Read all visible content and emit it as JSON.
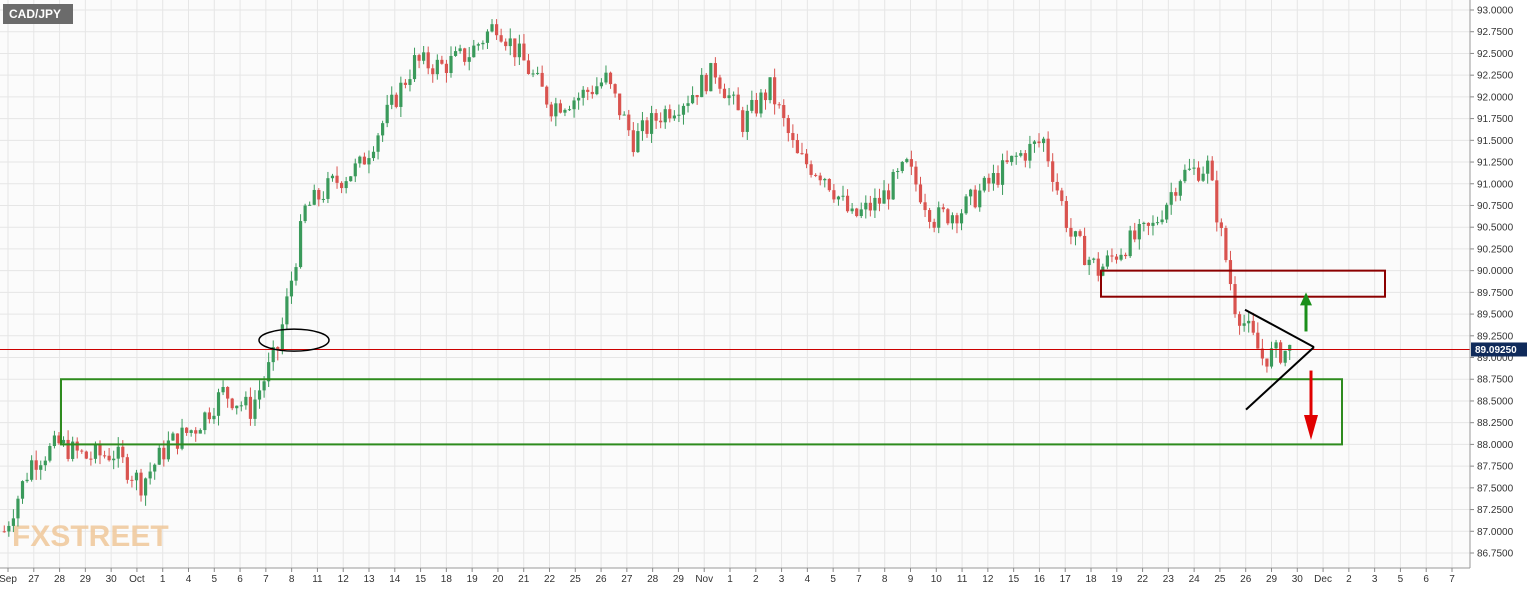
{
  "symbol": "CAD/JPY",
  "watermark": "FXSTREET",
  "colors": {
    "up": "#3a9a5b",
    "down": "#d9534f",
    "grid": "#e6e6e6",
    "price_line": "#cc0000",
    "support_box": "#2e8b1e",
    "resistance_box": "#8b0000",
    "up_arrow": "#1a8f1a",
    "down_arrow": "#e00000",
    "triangle": "#000000",
    "price_tag_bg": "#0f2a5a"
  },
  "chart_data": {
    "type": "candlestick",
    "title": "",
    "xlabel": "",
    "ylabel": "",
    "ylim": [
      86.6,
      93.05
    ],
    "yticks": [
      "93.0000",
      "92.7500",
      "92.5000",
      "92.2500",
      "92.0000",
      "91.7500",
      "91.5000",
      "91.2500",
      "91.0000",
      "90.7500",
      "90.5000",
      "90.2500",
      "90.0000",
      "89.7500",
      "89.5000",
      "89.2500",
      "89.0000",
      "88.7500",
      "88.5000",
      "88.2500",
      "88.0000",
      "87.7500",
      "87.5000",
      "87.2500",
      "87.0000",
      "86.7500"
    ],
    "x_ticks": [
      "Sep",
      "27",
      "28",
      "29",
      "30",
      "Oct",
      "1",
      "4",
      "5",
      "6",
      "7",
      "8",
      "11",
      "12",
      "13",
      "14",
      "15",
      "18",
      "19",
      "20",
      "21",
      "22",
      "25",
      "26",
      "27",
      "28",
      "29",
      "Nov",
      "1",
      "2",
      "3",
      "4",
      "5",
      "7",
      "8",
      "9",
      "10",
      "11",
      "12",
      "15",
      "16",
      "17",
      "18",
      "19",
      "22",
      "23",
      "24",
      "25",
      "26",
      "29",
      "30",
      "Dec",
      "2",
      "3",
      "5",
      "6",
      "7"
    ],
    "current_price": 89.0925,
    "current_price_label": "89.09250",
    "daily_closes": [
      {
        "date": "Sep 24",
        "close": 87.0
      },
      {
        "date": "Sep 27",
        "close": 87.8
      },
      {
        "date": "Sep 28",
        "close": 88.0
      },
      {
        "date": "Sep 29",
        "close": 87.85
      },
      {
        "date": "Sep 30",
        "close": 87.9
      },
      {
        "date": "Oct 1",
        "close": 87.55
      },
      {
        "date": "Oct 4",
        "close": 88.0
      },
      {
        "date": "Oct 5",
        "close": 88.2
      },
      {
        "date": "Oct 6",
        "close": 88.6
      },
      {
        "date": "Oct 7",
        "close": 88.4
      },
      {
        "date": "Oct 8",
        "close": 89.1
      },
      {
        "date": "Oct 11",
        "close": 90.7
      },
      {
        "date": "Oct 12",
        "close": 91.0
      },
      {
        "date": "Oct 13",
        "close": 91.2
      },
      {
        "date": "Oct 14",
        "close": 91.8
      },
      {
        "date": "Oct 15",
        "close": 92.4
      },
      {
        "date": "Oct 18",
        "close": 92.35
      },
      {
        "date": "Oct 19",
        "close": 92.5
      },
      {
        "date": "Oct 20",
        "close": 92.85
      },
      {
        "date": "Oct 21",
        "close": 92.4
      },
      {
        "date": "Oct 22",
        "close": 91.9
      },
      {
        "date": "Oct 25",
        "close": 92.0
      },
      {
        "date": "Oct 26",
        "close": 92.2
      },
      {
        "date": "Oct 27",
        "close": 91.5
      },
      {
        "date": "Oct 28",
        "close": 91.8
      },
      {
        "date": "Oct 29",
        "close": 92.0
      },
      {
        "date": "Nov 1",
        "close": 92.3
      },
      {
        "date": "Nov 2",
        "close": 91.7
      },
      {
        "date": "Nov 3",
        "close": 92.1
      },
      {
        "date": "Nov 4",
        "close": 91.3
      },
      {
        "date": "Nov 5",
        "close": 91.1
      },
      {
        "date": "Nov 8",
        "close": 90.6
      },
      {
        "date": "Nov 9",
        "close": 90.8
      },
      {
        "date": "Nov 10",
        "close": 91.2
      },
      {
        "date": "Nov 11",
        "close": 90.6
      },
      {
        "date": "Nov 12",
        "close": 90.7
      },
      {
        "date": "Nov 15",
        "close": 91.0
      },
      {
        "date": "Nov 16",
        "close": 91.3
      },
      {
        "date": "Nov 17",
        "close": 91.5
      },
      {
        "date": "Nov 18",
        "close": 90.4
      },
      {
        "date": "Nov 19",
        "close": 90.0
      },
      {
        "date": "Nov 22",
        "close": 90.3
      },
      {
        "date": "Nov 23",
        "close": 90.5
      },
      {
        "date": "Nov 24",
        "close": 91.1
      },
      {
        "date": "Nov 25",
        "close": 91.2
      },
      {
        "date": "Nov 26",
        "close": 89.6
      },
      {
        "date": "Nov 29",
        "close": 89.0
      },
      {
        "date": "Nov 30",
        "close": 89.09
      }
    ],
    "annotations": [
      {
        "type": "support_zone",
        "price_low": 88.0,
        "price_high": 88.75
      },
      {
        "type": "resistance_zone",
        "price_low": 89.7,
        "price_high": 90.0
      },
      {
        "type": "symmetrical_triangle",
        "upper_start": 89.55,
        "lower_start": 88.4,
        "apex": 89.12
      },
      {
        "type": "ellipse",
        "date": "Oct 8",
        "price": 89.2
      },
      {
        "type": "arrow_up",
        "from": 89.3,
        "to": 89.75
      },
      {
        "type": "arrow_down",
        "from": 88.85,
        "to": 88.05
      }
    ]
  }
}
